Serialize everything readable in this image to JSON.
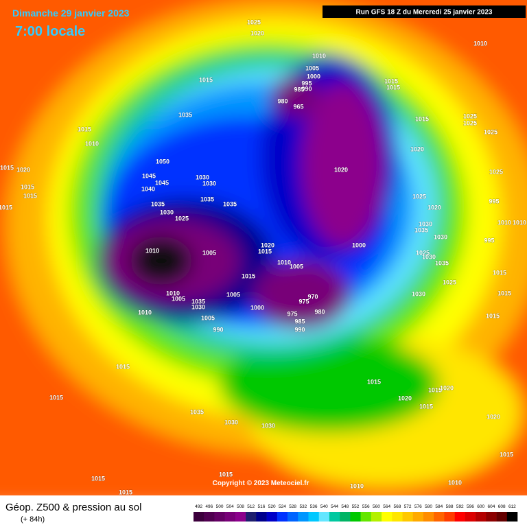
{
  "header": {
    "date": "Dimanche 29 janvier 2023",
    "time": "7:00 locale",
    "run": "Run GFS 18 Z du Mercredi 25 janvier 2023"
  },
  "copyright": "Copyright © 2023 Meteociel.fr",
  "legend": {
    "title": "Géop. Z500 & pression au sol",
    "lead": "(+ 84h)",
    "labels": [
      492,
      496,
      500,
      504,
      508,
      512,
      516,
      520,
      524,
      528,
      532,
      536,
      540,
      544,
      548,
      552,
      556,
      560,
      564,
      568,
      572,
      576,
      580,
      584,
      588,
      592,
      596,
      600,
      604,
      608,
      612
    ],
    "colors": [
      "#3c003c",
      "#500050",
      "#640064",
      "#780078",
      "#8c008c",
      "#1e1e6e",
      "#00008c",
      "#0000c8",
      "#0032ff",
      "#0064ff",
      "#0096ff",
      "#00c8ff",
      "#64e6ff",
      "#00c8a0",
      "#00b464",
      "#00c800",
      "#64e600",
      "#b4f000",
      "#ffff00",
      "#ffe600",
      "#ffc800",
      "#ffaa00",
      "#ff8c00",
      "#ff6400",
      "#ff3c00",
      "#ff0000",
      "#dc0000",
      "#b40000",
      "#8c0000",
      "#640000",
      "#000000"
    ]
  },
  "isobars": [
    1025,
    1020,
    1010,
    1010,
    1005,
    1000,
    995,
    990,
    985,
    980,
    965,
    1015,
    1015,
    1015,
    1035,
    1015,
    1010,
    1015,
    1025,
    1025,
    1025,
    1020,
    1050,
    1020,
    1015,
    1020,
    1045,
    1045,
    1030,
    1030,
    1015,
    1015,
    1040,
    1025,
    1035,
    1035,
    1025,
    995,
    1035,
    1015,
    1030,
    1020,
    1025,
    1010,
    1010,
    1030,
    1035,
    1030,
    995,
    1020,
    1000,
    1010,
    1015,
    1005,
    1025,
    1030,
    1015,
    1035,
    1010,
    1005,
    1015,
    1025,
    1030,
    970,
    975,
    1010,
    1005,
    1005,
    1035,
    1030,
    1000,
    980,
    975,
    1010,
    1005,
    985,
    990,
    990,
    1015,
    1015,
    1015,
    1015,
    1015,
    1020,
    1015,
    1020,
    1015,
    1035,
    1030,
    1030,
    1020,
    1015,
    1015,
    1015,
    1015,
    1010,
    1010
  ]
}
